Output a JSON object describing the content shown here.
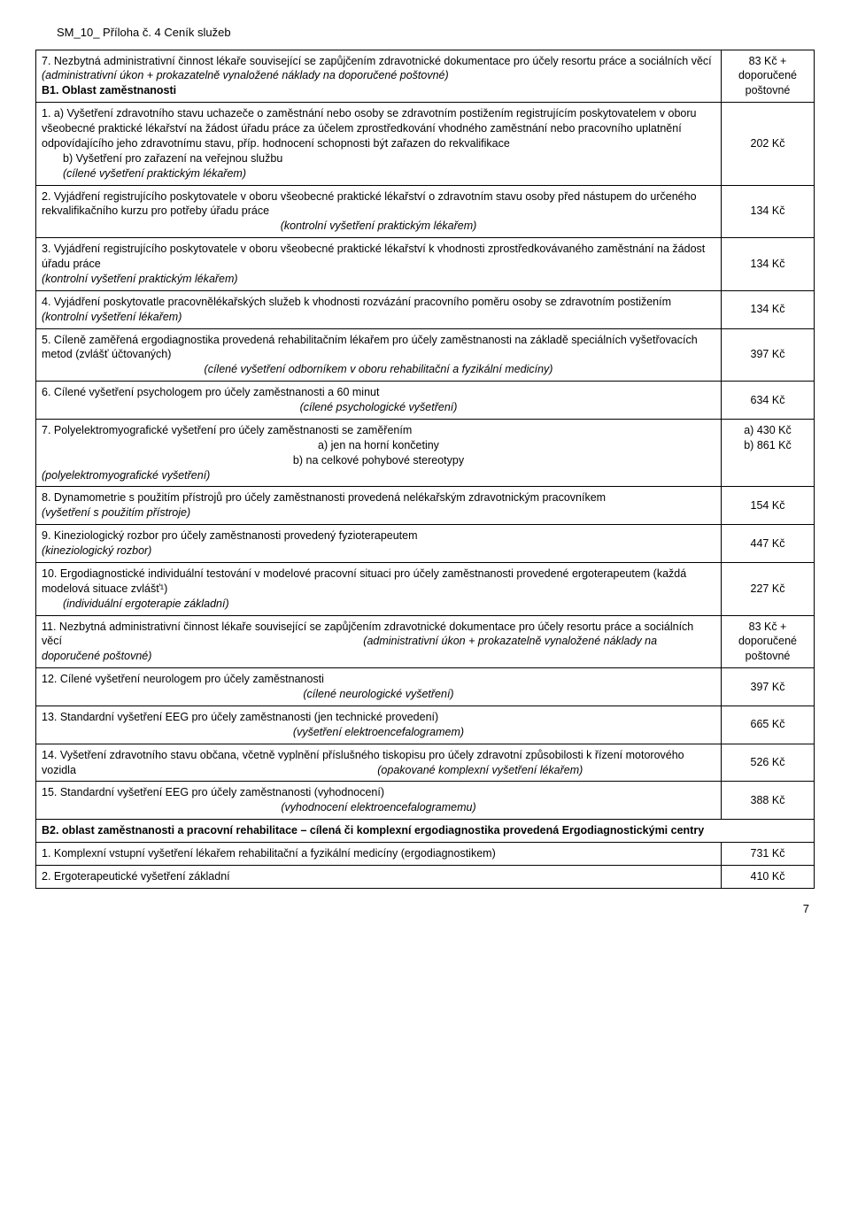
{
  "header": "SM_10_ Příloha č. 4 Ceník služeb",
  "page_number": "7",
  "rows": [
    {
      "desc_lines": [
        {
          "t": "7. Nezbytná administrativní činnost lékaře související se zapůjčením zdravotnické dokumentace pro účely resortu práce a sociálních věcí"
        },
        {
          "t": "(administrativní úkon + prokazatelně vynaložené náklady na doporučené poštovné)",
          "italic": true
        },
        {
          "t": "B1. Oblast zaměstnanosti",
          "bold": true
        }
      ],
      "price": "83 Kč + doporučené poštovné"
    },
    {
      "desc_lines": [
        {
          "t": "1. a) Vyšetření zdravotního stavu uchazeče o zaměstnání nebo osoby se zdravotním postižením registrujícím poskytovatelem v oboru všeobecné praktické lékařství na žádost úřadu práce za účelem zprostředkování vhodného zaměstnání nebo pracovního uplatnění odpovídajícího jeho zdravotnímu stavu, příp. hodnocení schopnosti být zařazen do rekvalifikace"
        },
        {
          "t": "b) Vyšetření pro zařazení na veřejnou službu",
          "indent": true
        },
        {
          "t": "(cílené vyšetření praktickým lékařem)",
          "italic": true,
          "indent": true
        }
      ],
      "price": "202 Kč"
    },
    {
      "desc_lines": [
        {
          "t": "2. Vyjádření registrujícího poskytovatele v oboru všeobecné praktické lékařství o zdravotním stavu osoby před nástupem do určeného rekvalifikačního kurzu pro potřeby úřadu práce"
        },
        {
          "t": "(kontrolní vyšetření praktickým lékařem)",
          "italic": true,
          "center": true
        }
      ],
      "price": "134 Kč"
    },
    {
      "desc_lines": [
        {
          "t": "3. Vyjádření registrujícího poskytovatele v oboru všeobecné praktické lékařství k vhodnosti zprostředkovávaného zaměstnání na žádost úřadu práce"
        },
        {
          "t": "(kontrolní vyšetření praktickým lékařem)",
          "italic": true
        }
      ],
      "price": "134 Kč"
    },
    {
      "desc_lines": [
        {
          "t": "4. Vyjádření poskytovatle pracovnělékařských služeb k vhodnosti rozvázání pracovního poměru osoby se zdravotním postižením"
        },
        {
          "t": "(kontrolní vyšetření lékařem)",
          "italic": true
        }
      ],
      "price": "134 Kč"
    },
    {
      "desc_lines": [
        {
          "t": "5. Cíleně zaměřená ergodiagnostika provedená rehabilitačním lékařem pro účely zaměstnanosti na základě speciálních vyšetřovacích metod (zvlášť účtovaných)"
        },
        {
          "t": "(cílené vyšetření odborníkem v oboru rehabilitační a fyzikální medicíny)",
          "italic": true,
          "center": true
        }
      ],
      "price": "397 Kč"
    },
    {
      "desc_lines": [
        {
          "t": "6. Cílené vyšetření psychologem pro účely zaměstnanosti a 60 minut"
        },
        {
          "t": "(cílené psychologické vyšetření)",
          "italic": true,
          "center": true
        }
      ],
      "price": "634 Kč"
    },
    {
      "desc_lines": [
        {
          "t": "7. Polyelektromyografické vyšetření pro účely zaměstnanosti se zaměřením"
        },
        {
          "t": "a)   jen na horní končetiny",
          "center": true
        },
        {
          "t": "b)   na celkové pohybové stereotypy",
          "center": true
        },
        {
          "t": "(polyelektromyografické vyšetření)",
          "italic": true
        }
      ],
      "price": "a) 430 Kč\nb) 861 Kč",
      "price_align_top": true
    },
    {
      "desc_lines": [
        {
          "t": "8. Dynamometrie s použitím přístrojů pro účely zaměstnanosti provedená nelékařským zdravotnickým pracovníkem"
        },
        {
          "t": "(vyšetření s použitím přístroje)",
          "italic": true
        }
      ],
      "price": "154 Kč"
    },
    {
      "desc_lines": [
        {
          "t": "9. Kineziologický rozbor pro účely zaměstnanosti provedený fyzioterapeutem"
        },
        {
          "t": "(kineziologický rozbor)",
          "italic": true
        }
      ],
      "price": "447 Kč"
    },
    {
      "desc_lines": [
        {
          "t": "10. Ergodiagnostické individuální testování v modelové pracovní situaci pro účely zaměstnanosti provedené ergoterapeutem (každá modelová situace zvlášť¹)"
        },
        {
          "t": "(individuální ergoterapie základní)",
          "italic": true,
          "indent": true
        }
      ],
      "price": "227 Kč"
    },
    {
      "desc_html": "11. Nezbytná administrativní činnost lékaře související se zapůjčením zdravotnické dokumentace pro účely resortu práce a sociálních věcí&nbsp;&nbsp;&nbsp;&nbsp;&nbsp;&nbsp;&nbsp;&nbsp;&nbsp;&nbsp;&nbsp;&nbsp;&nbsp;&nbsp;&nbsp;&nbsp;&nbsp;&nbsp;&nbsp;&nbsp;&nbsp;&nbsp;&nbsp;&nbsp;&nbsp;&nbsp;&nbsp;&nbsp;&nbsp;&nbsp;&nbsp;&nbsp;&nbsp;&nbsp;&nbsp;&nbsp;&nbsp;&nbsp;&nbsp;&nbsp;&nbsp;&nbsp;&nbsp;&nbsp;&nbsp;&nbsp;&nbsp;&nbsp;&nbsp;&nbsp;&nbsp;&nbsp;&nbsp;&nbsp;&nbsp;&nbsp;&nbsp;&nbsp;&nbsp;&nbsp;&nbsp;&nbsp;&nbsp;&nbsp;&nbsp;&nbsp;&nbsp;&nbsp;&nbsp;&nbsp;&nbsp;&nbsp;&nbsp;&nbsp;&nbsp;&nbsp;&nbsp;&nbsp;&nbsp;&nbsp;&nbsp;&nbsp;&nbsp;&nbsp;&nbsp;&nbsp;&nbsp;&nbsp;&nbsp;&nbsp;&nbsp;&nbsp;&nbsp;&nbsp;&nbsp;&nbsp;&nbsp;&nbsp;<span class=\"italic\">(administrativní úkon + prokazatelně vynaložené náklady na doporučené poštovné)</span>",
      "price": "83 Kč + doporučené poštovné"
    },
    {
      "desc_lines": [
        {
          "t": "12. Cílené vyšetření neurologem pro účely zaměstnanosti"
        },
        {
          "t": "(cílené neurologické vyšetření)",
          "italic": true,
          "center": true
        }
      ],
      "price": "397 Kč"
    },
    {
      "desc_lines": [
        {
          "t": "13. Standardní vyšetření EEG pro účely zaměstnanosti (jen technické provedení)"
        },
        {
          "t": "(vyšetření elektroencefalogramem)",
          "italic": true,
          "center": true
        }
      ],
      "price": "665 Kč"
    },
    {
      "desc_html": "14. Vyšetření zdravotního stavu občana, včetně vyplnění příslušného tiskopisu pro účely zdravotní způsobilosti k řízení motorového vozidla&nbsp;&nbsp;&nbsp;&nbsp;&nbsp;&nbsp;&nbsp;&nbsp;&nbsp;&nbsp;&nbsp;&nbsp;&nbsp;&nbsp;&nbsp;&nbsp;&nbsp;&nbsp;&nbsp;&nbsp;&nbsp;&nbsp;&nbsp;&nbsp;&nbsp;&nbsp;&nbsp;&nbsp;&nbsp;&nbsp;&nbsp;&nbsp;&nbsp;&nbsp;&nbsp;&nbsp;&nbsp;&nbsp;&nbsp;&nbsp;&nbsp;&nbsp;&nbsp;&nbsp;&nbsp;&nbsp;&nbsp;&nbsp;&nbsp;&nbsp;&nbsp;&nbsp;&nbsp;&nbsp;&nbsp;&nbsp;&nbsp;&nbsp;&nbsp;&nbsp;&nbsp;&nbsp;&nbsp;&nbsp;&nbsp;&nbsp;&nbsp;&nbsp;&nbsp;&nbsp;&nbsp;&nbsp;&nbsp;&nbsp;&nbsp;&nbsp;&nbsp;&nbsp;&nbsp;&nbsp;&nbsp;&nbsp;&nbsp;&nbsp;&nbsp;&nbsp;&nbsp;&nbsp;&nbsp;&nbsp;&nbsp;&nbsp;&nbsp;&nbsp;&nbsp;&nbsp;&nbsp;&nbsp;<span class=\"italic\">(opakované komplexní vyšetření lékařem)</span>",
      "price": "526 Kč"
    },
    {
      "desc_lines": [
        {
          "t": "15. Standardní vyšetření EEG pro účely zaměstnanosti (vyhodnocení)"
        },
        {
          "t": "(vyhodnocení elektroencefalogramemu)",
          "italic": true,
          "center": true
        }
      ],
      "price": "388 Kč"
    },
    {
      "section": true,
      "desc_lines": [
        {
          "t": "B2. oblast zaměstnanosti a pracovní rehabilitace – cílená či komplexní ergodiagnostika provedená Ergodiagnostickými centry",
          "bold": true
        }
      ]
    },
    {
      "desc_lines": [
        {
          "t": "1. Komplexní vstupní vyšetření lékařem rehabilitační a fyzikální medicíny (ergodiagnostikem)"
        }
      ],
      "price": "731 Kč"
    },
    {
      "desc_lines": [
        {
          "t": "2. Ergoterapeutické vyšetření základní"
        }
      ],
      "price": "410 Kč"
    }
  ]
}
